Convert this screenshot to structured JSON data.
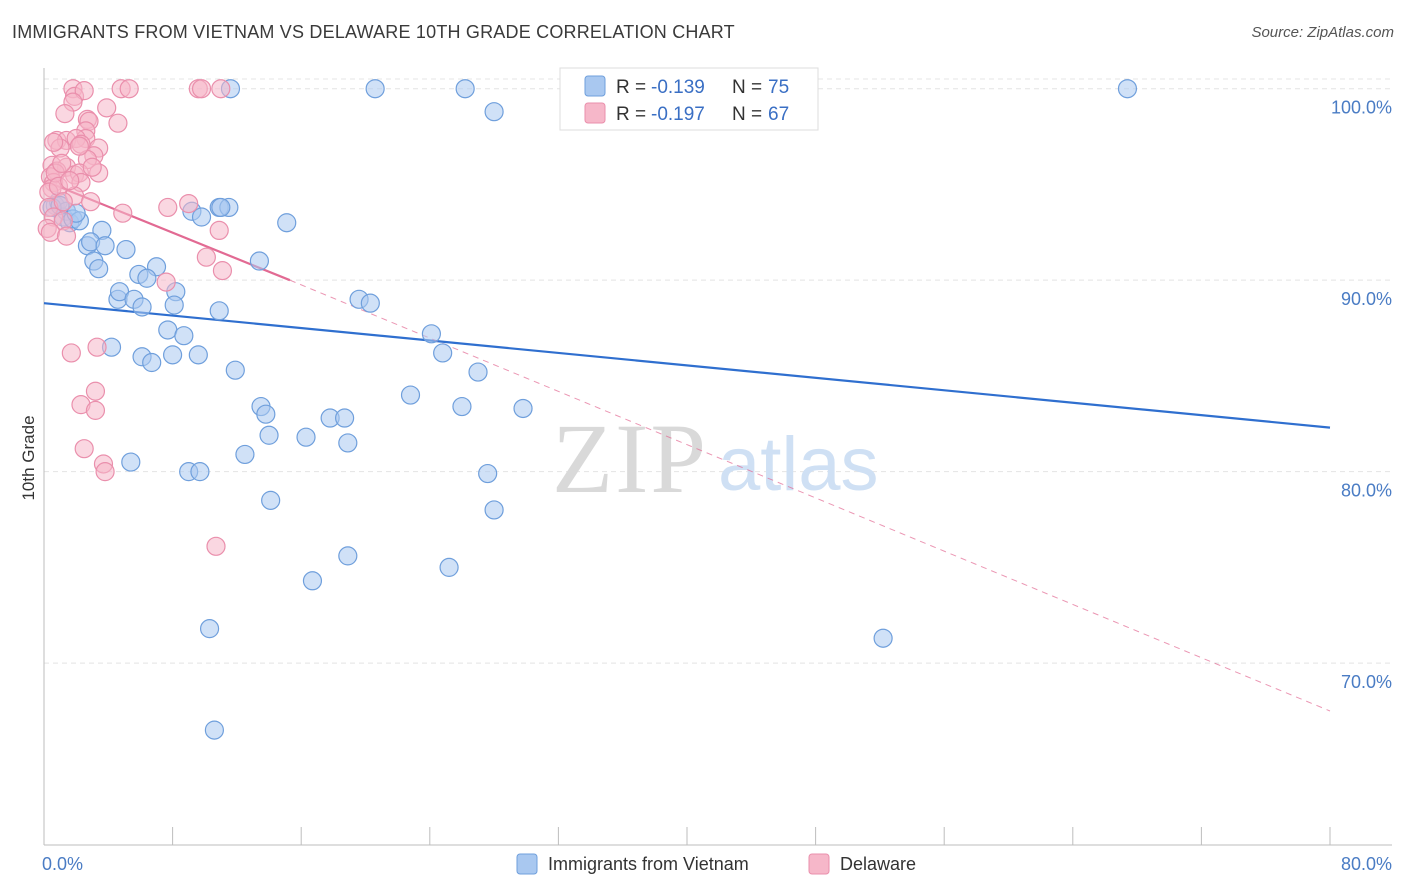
{
  "title": "IMMIGRANTS FROM VIETNAM VS DELAWARE 10TH GRADE CORRELATION CHART",
  "source": "Source: ZipAtlas.com",
  "watermark": {
    "zip": "ZIP",
    "atlas": "atlas"
  },
  "legend": {
    "r_label": "R =",
    "n_label": "N =",
    "entries": [
      {
        "r": "-0.139",
        "n": "75",
        "color": "#a9c8f0"
      },
      {
        "r": "-0.197",
        "n": "67",
        "color": "#f6b7c9"
      }
    ]
  },
  "colors": {
    "blue_fill": "#a9c8f0",
    "blue_stroke": "#6f9fdc",
    "blue_line": "#2f6fcf",
    "pink_fill": "#f6b7c9",
    "pink_stroke": "#ea8fac",
    "pink_line": "#e26a93",
    "grid": "#e4e4e4",
    "tick_label": "#4a7cc4"
  },
  "chart_data": {
    "type": "scatter",
    "title": "IMMIGRANTS FROM VIETNAM VS DELAWARE 10TH GRADE CORRELATION CHART",
    "xlabel": "",
    "ylabel": "10th Grade",
    "xlim": [
      0,
      80
    ],
    "ylim": [
      60.5,
      101.5
    ],
    "x_tick_labels": [
      "0.0%",
      "80.0%"
    ],
    "y_ticks": [
      70,
      80,
      90,
      100
    ],
    "y_tick_labels": [
      "70.0%",
      "80.0%",
      "90.0%",
      "100.0%"
    ],
    "series": [
      {
        "name": "Immigrants from Vietnam",
        "color": "#a9c8f0",
        "trend": {
          "x": [
            0,
            80
          ],
          "y": [
            88.8,
            82.3
          ],
          "style": "solid"
        },
        "points": [
          [
            0.7,
            93.9
          ],
          [
            0.9,
            94.1
          ],
          [
            1.2,
            93.3
          ],
          [
            1.4,
            93.6
          ],
          [
            1.6,
            93.0
          ],
          [
            1.8,
            93.2
          ],
          [
            2.2,
            93.1
          ],
          [
            0.5,
            93.8
          ],
          [
            3.6,
            92.6
          ],
          [
            2.7,
            91.8
          ],
          [
            2.9,
            92.0
          ],
          [
            3.8,
            91.8
          ],
          [
            5.1,
            91.6
          ],
          [
            3.1,
            91.0
          ],
          [
            3.4,
            90.6
          ],
          [
            5.9,
            90.3
          ],
          [
            7.0,
            90.7
          ],
          [
            6.4,
            90.1
          ],
          [
            4.6,
            89.0
          ],
          [
            4.7,
            89.4
          ],
          [
            5.6,
            89.0
          ],
          [
            6.1,
            88.6
          ],
          [
            8.2,
            89.4
          ],
          [
            8.1,
            88.7
          ],
          [
            10.9,
            93.8
          ],
          [
            11.5,
            93.8
          ],
          [
            11.0,
            93.8
          ],
          [
            9.2,
            93.6
          ],
          [
            9.8,
            93.3
          ],
          [
            15.1,
            93.0
          ],
          [
            13.4,
            91.0
          ],
          [
            10.9,
            88.4
          ],
          [
            7.7,
            87.4
          ],
          [
            8.7,
            87.1
          ],
          [
            4.2,
            86.5
          ],
          [
            6.1,
            86.0
          ],
          [
            6.7,
            85.7
          ],
          [
            8.0,
            86.1
          ],
          [
            9.6,
            86.1
          ],
          [
            11.9,
            85.3
          ],
          [
            19.6,
            89.0
          ],
          [
            20.3,
            88.8
          ],
          [
            24.1,
            87.2
          ],
          [
            24.8,
            86.2
          ],
          [
            27.0,
            85.2
          ],
          [
            29.8,
            83.3
          ],
          [
            22.8,
            84.0
          ],
          [
            26.0,
            83.4
          ],
          [
            13.5,
            83.4
          ],
          [
            13.8,
            83.0
          ],
          [
            14.0,
            81.9
          ],
          [
            16.3,
            81.8
          ],
          [
            17.8,
            82.8
          ],
          [
            18.7,
            82.8
          ],
          [
            18.9,
            81.5
          ],
          [
            12.5,
            80.9
          ],
          [
            5.4,
            80.5
          ],
          [
            9.0,
            80.0
          ],
          [
            9.7,
            80.0
          ],
          [
            14.1,
            78.5
          ],
          [
            27.6,
            79.9
          ],
          [
            28.0,
            78.0
          ],
          [
            18.9,
            75.6
          ],
          [
            16.7,
            74.3
          ],
          [
            25.2,
            75.0
          ],
          [
            10.3,
            71.8
          ],
          [
            10.6,
            66.5
          ],
          [
            52.2,
            71.3
          ],
          [
            11.6,
            100.0
          ],
          [
            20.6,
            100.0
          ],
          [
            26.2,
            100.0
          ],
          [
            28.0,
            98.8
          ],
          [
            67.4,
            100.0
          ],
          [
            1.0,
            93.9
          ],
          [
            2.0,
            93.5
          ]
        ]
      },
      {
        "name": "Delaware",
        "color": "#f6b7c9",
        "trend": {
          "x": [
            0,
            15.3
          ],
          "y": [
            95.2,
            90.0
          ],
          "style": "solid",
          "extended": {
            "x": [
              15.3,
              80
            ],
            "y": [
              90.0,
              67.5
            ],
            "style": "dashed"
          }
        },
        "points": [
          [
            1.8,
            100.0
          ],
          [
            1.9,
            99.6
          ],
          [
            2.5,
            99.9
          ],
          [
            1.8,
            99.3
          ],
          [
            3.9,
            99.0
          ],
          [
            1.3,
            98.7
          ],
          [
            2.7,
            98.4
          ],
          [
            2.8,
            98.3
          ],
          [
            4.6,
            98.2
          ],
          [
            2.6,
            97.8
          ],
          [
            2.6,
            97.4
          ],
          [
            0.8,
            97.3
          ],
          [
            1.4,
            97.3
          ],
          [
            2.0,
            97.4
          ],
          [
            2.3,
            97.1
          ],
          [
            1.0,
            96.9
          ],
          [
            3.4,
            96.9
          ],
          [
            3.1,
            96.5
          ],
          [
            2.7,
            96.3
          ],
          [
            0.5,
            96.0
          ],
          [
            1.4,
            95.9
          ],
          [
            0.8,
            95.7
          ],
          [
            1.9,
            95.5
          ],
          [
            2.2,
            95.6
          ],
          [
            3.4,
            95.6
          ],
          [
            0.4,
            95.4
          ],
          [
            0.6,
            95.1
          ],
          [
            2.3,
            95.1
          ],
          [
            0.5,
            94.8
          ],
          [
            0.3,
            94.6
          ],
          [
            1.9,
            94.4
          ],
          [
            2.9,
            94.1
          ],
          [
            0.3,
            93.8
          ],
          [
            0.6,
            93.3
          ],
          [
            1.2,
            93.1
          ],
          [
            0.2,
            92.7
          ],
          [
            0.4,
            92.5
          ],
          [
            1.4,
            92.3
          ],
          [
            4.9,
            93.5
          ],
          [
            7.7,
            93.8
          ],
          [
            9.0,
            94.0
          ],
          [
            10.9,
            92.6
          ],
          [
            10.1,
            91.2
          ],
          [
            11.1,
            90.5
          ],
          [
            7.6,
            89.9
          ],
          [
            3.3,
            86.5
          ],
          [
            1.7,
            86.2
          ],
          [
            3.2,
            84.2
          ],
          [
            2.3,
            83.5
          ],
          [
            3.2,
            83.2
          ],
          [
            2.5,
            81.2
          ],
          [
            3.7,
            80.4
          ],
          [
            3.8,
            80.0
          ],
          [
            10.7,
            76.1
          ],
          [
            4.8,
            100.0
          ],
          [
            5.3,
            100.0
          ],
          [
            9.6,
            100.0
          ],
          [
            9.8,
            100.0
          ],
          [
            11.0,
            100.0
          ],
          [
            0.7,
            95.6
          ],
          [
            1.1,
            96.1
          ],
          [
            0.9,
            94.9
          ],
          [
            1.6,
            95.2
          ],
          [
            2.2,
            97.0
          ],
          [
            0.6,
            97.2
          ],
          [
            3.0,
            95.9
          ],
          [
            1.2,
            94.1
          ]
        ]
      }
    ]
  },
  "bottom_legend": [
    {
      "label": "Immigrants from Vietnam",
      "color": "#a9c8f0"
    },
    {
      "label": "Delaware",
      "color": "#f6b7c9"
    }
  ]
}
